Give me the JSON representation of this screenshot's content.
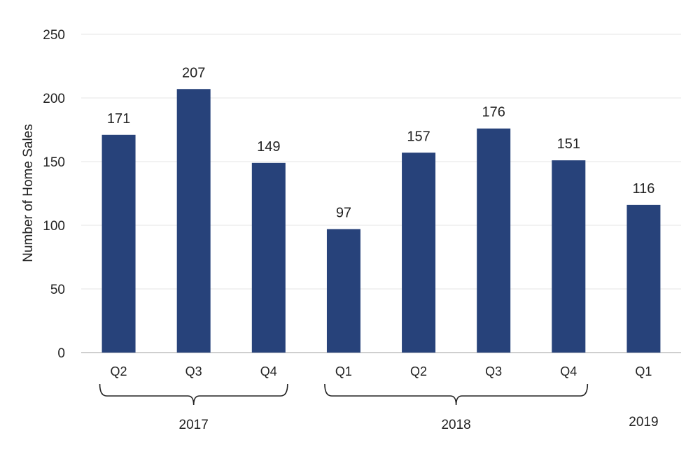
{
  "chart_data": {
    "type": "bar",
    "ylabel": "Number of Home Sales",
    "ylim": [
      0,
      250
    ],
    "yticks": [
      0,
      50,
      100,
      150,
      200,
      250
    ],
    "grid": true,
    "categories": [
      "Q2",
      "Q3",
      "Q4",
      "Q1",
      "Q2",
      "Q3",
      "Q4",
      "Q1"
    ],
    "values": [
      171,
      207,
      149,
      97,
      157,
      176,
      151,
      116
    ],
    "groups": [
      {
        "label": "2017",
        "start": 0,
        "end": 2,
        "bracket": true
      },
      {
        "label": "2018",
        "start": 3,
        "end": 6,
        "bracket": true
      },
      {
        "label": "2019",
        "start": 7,
        "end": 7,
        "bracket": false
      }
    ],
    "colors": {
      "bar": "#27427a",
      "grid": "#e6e6e6",
      "axis": "#bfbfbf",
      "bracket": "#222222"
    }
  }
}
